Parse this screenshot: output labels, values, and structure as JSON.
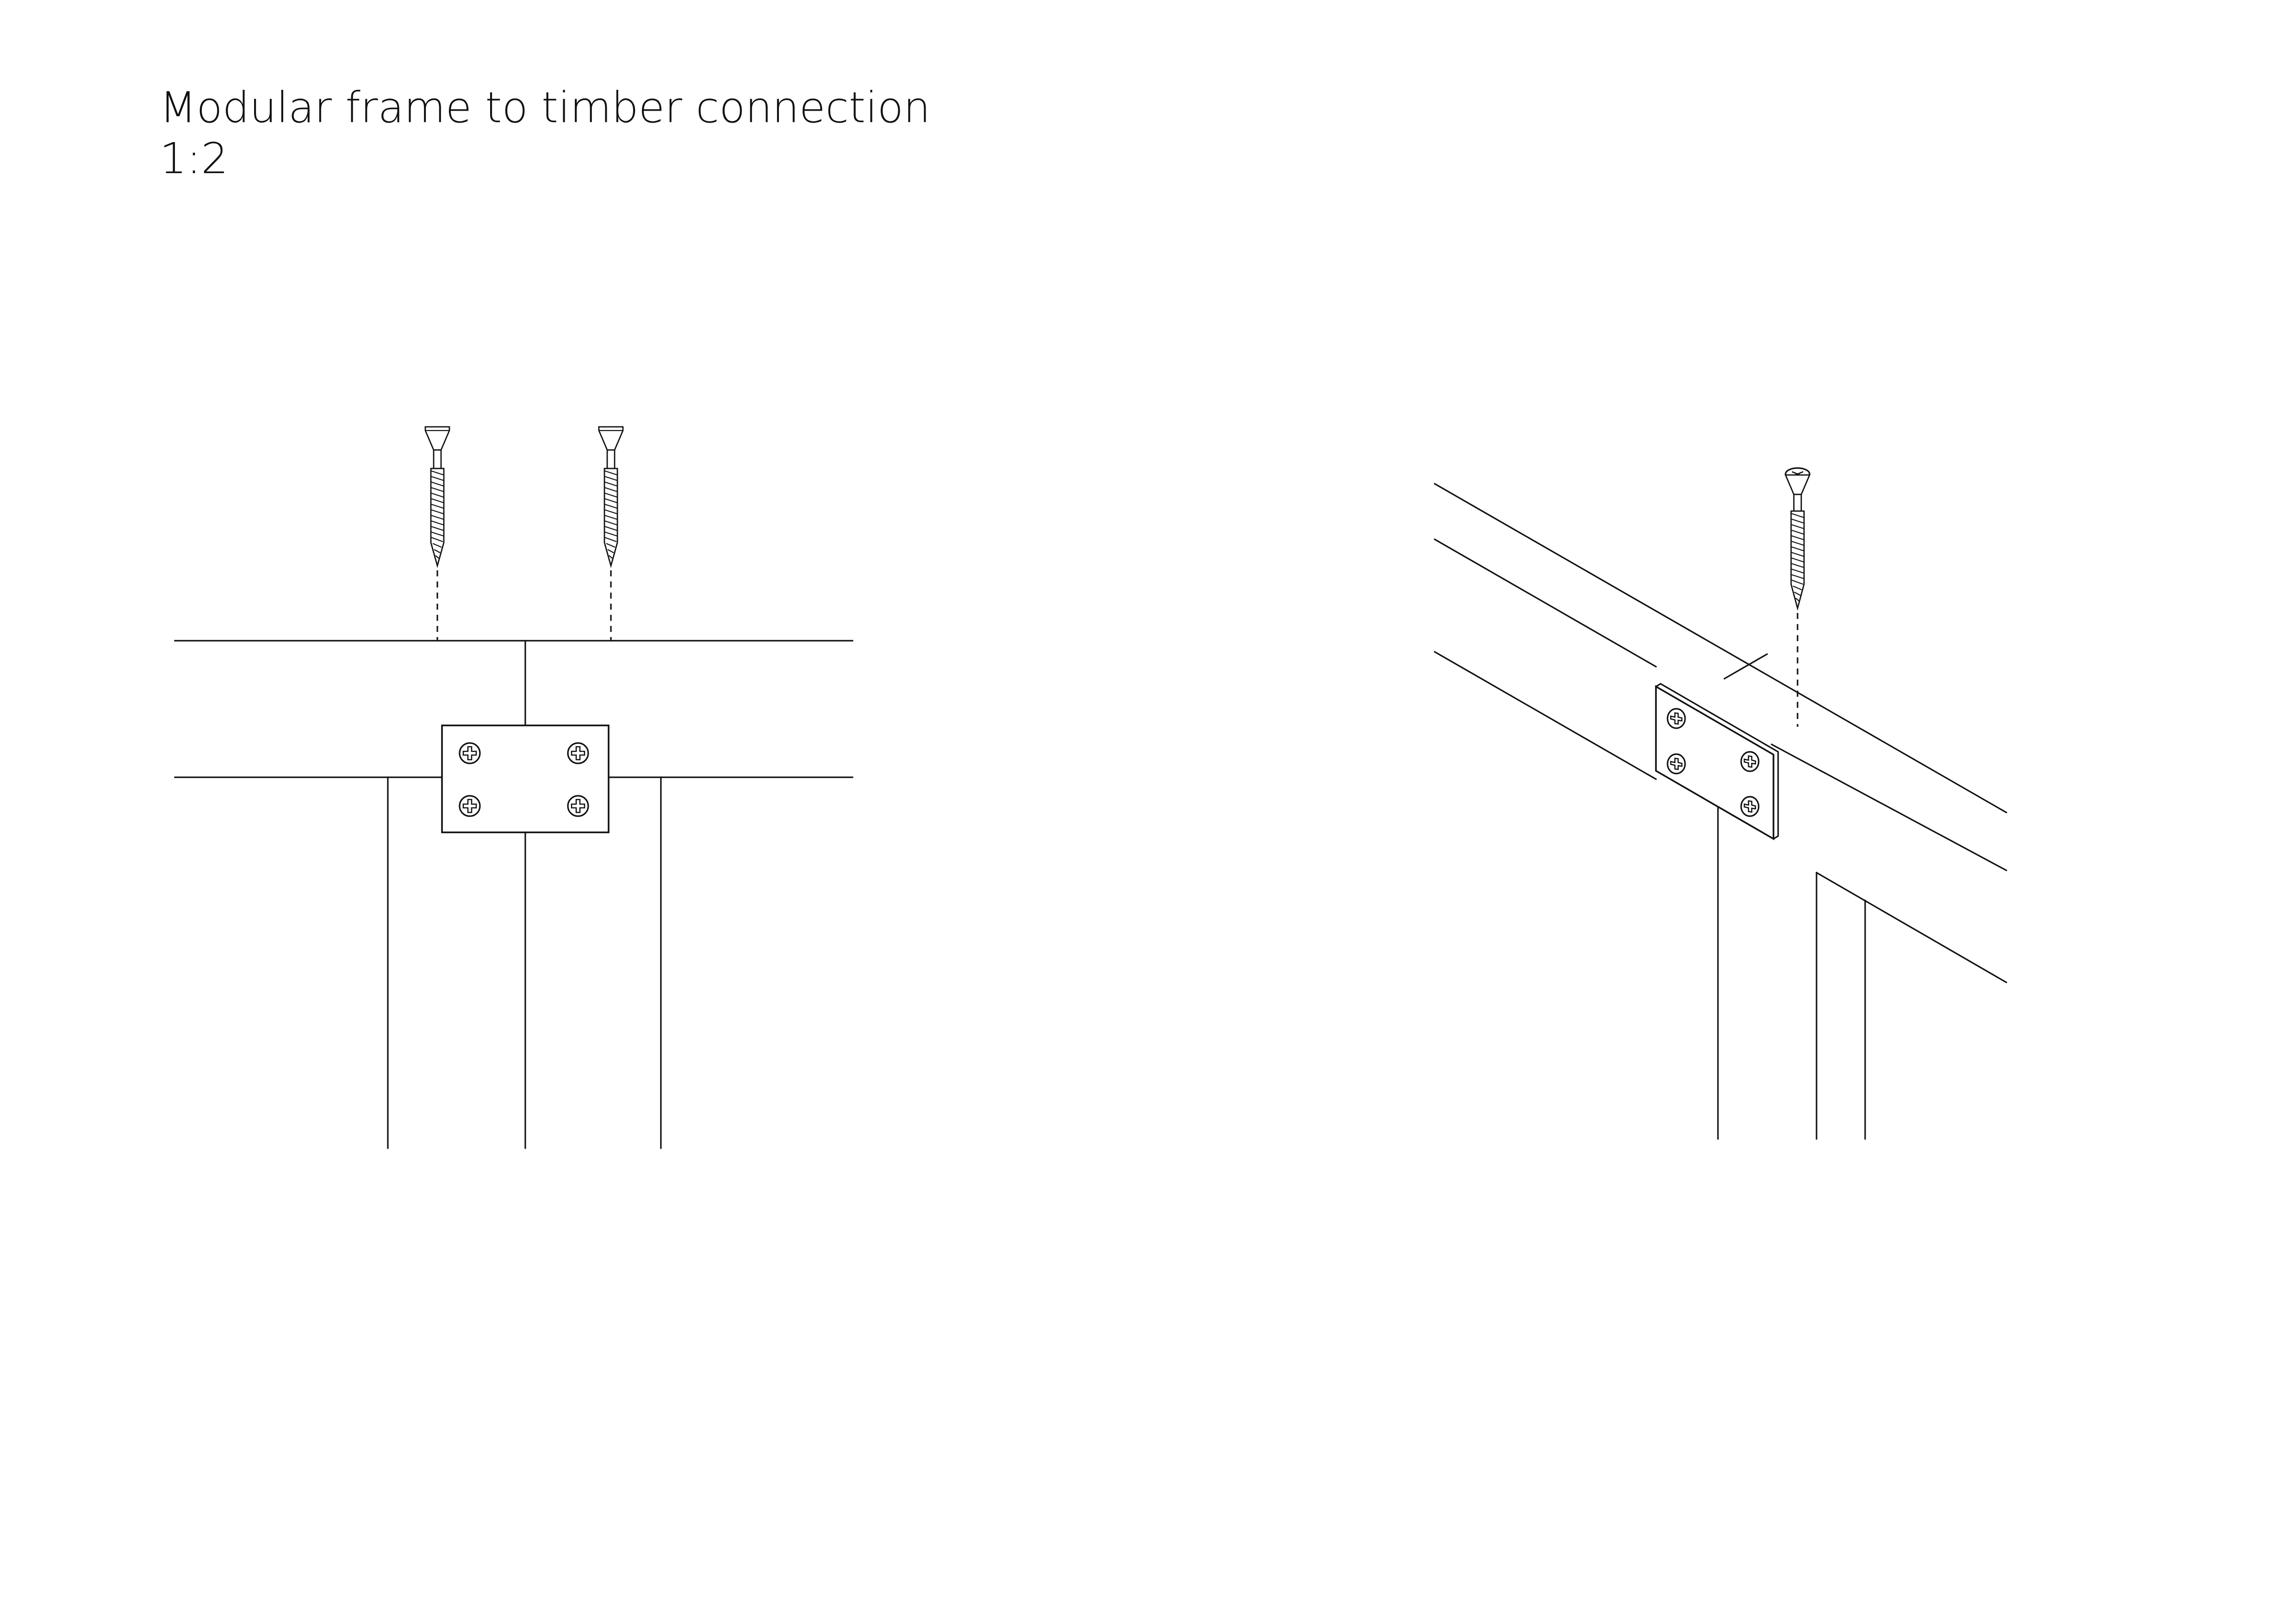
{
  "sheet": {
    "title": "Modular frame to timber connection",
    "scale": "1:2"
  },
  "elevation_view": {
    "screw_count": 2,
    "plate_screw_count": 4
  },
  "axonometric_view": {
    "screw_count": 1,
    "plate_screw_count": 4
  },
  "icons": {
    "screw": "countersunk-wood-screw-icon",
    "plate_screw": "phillips-screw-head-icon"
  },
  "colors": {
    "line": "#111111",
    "background": "#ffffff"
  }
}
